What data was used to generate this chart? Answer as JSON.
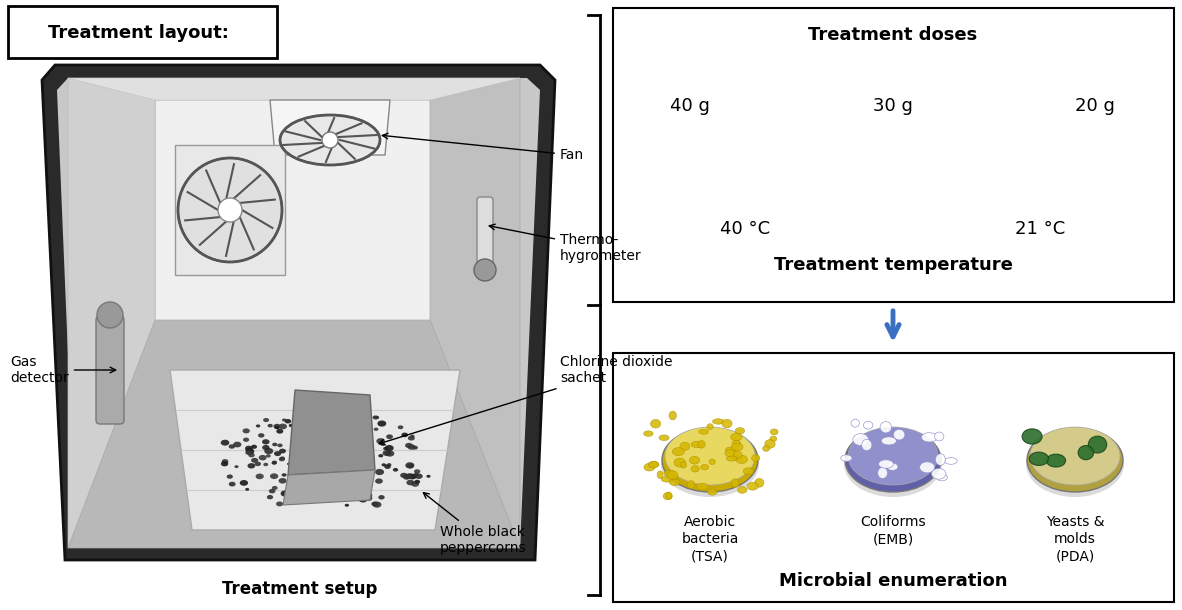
{
  "title_layout": "Treatment layout:",
  "title_setup": "Treatment setup",
  "title_doses": "Treatment doses",
  "title_temp": "Treatment temperature",
  "title_enum": "Microbial enumeration",
  "doses": [
    "40 g",
    "30 g",
    "20 g"
  ],
  "temps": [
    "40 °C",
    "21 °C"
  ],
  "bg_color": "#ffffff",
  "text_color": "#000000",
  "arrow_blue": "#3a6fc4"
}
